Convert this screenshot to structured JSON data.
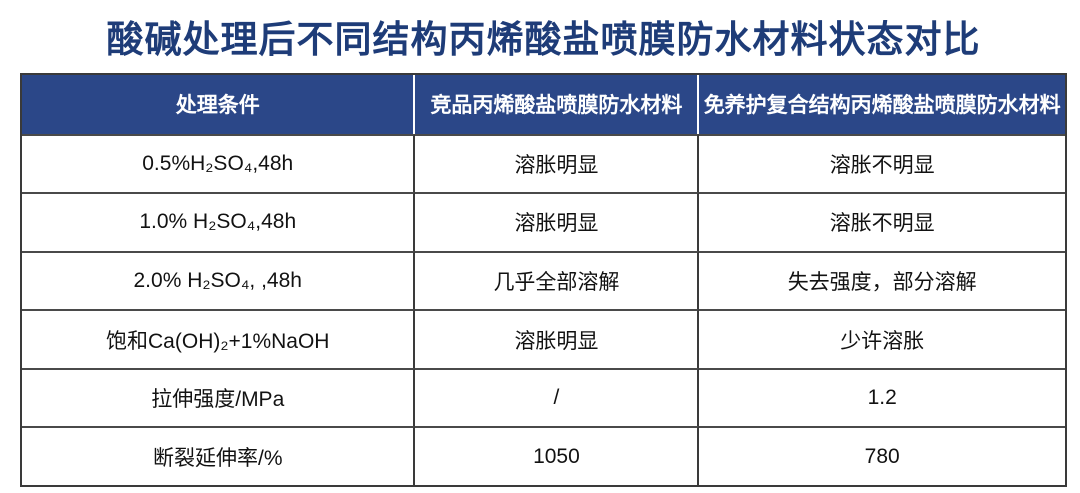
{
  "title": "酸碱处理后不同结构丙烯酸盐喷膜防水材料状态对比",
  "colors": {
    "title_color": "#1E3C78",
    "header_bg": "#2B4788",
    "header_text": "#FFFFFF",
    "body_text": "#121212",
    "grid_line": "#3A3A3A"
  },
  "table": {
    "headers": [
      "处理条件",
      "竞品丙烯酸盐喷膜防水材料",
      "免养护复合结构丙烯酸盐喷膜防水材料"
    ],
    "rows": [
      {
        "cells": [
          "0.5%H₂SO₄,48h",
          "溶胀明显",
          "溶胀不明显"
        ]
      },
      {
        "cells": [
          "1.0% H₂SO₄,48h",
          "溶胀明显",
          "溶胀不明显"
        ]
      },
      {
        "cells": [
          "2.0% H₂SO₄, ,48h",
          "几乎全部溶解",
          "失去强度，部分溶解"
        ]
      },
      {
        "cells": [
          "饱和Ca(OH)₂+1%NaOH",
          "溶胀明显",
          "少许溶胀"
        ]
      },
      {
        "cells": [
          "拉伸强度/MPa",
          "/",
          "1.2"
        ]
      },
      {
        "cells": [
          "断裂延伸率/%",
          "1050",
          "780"
        ]
      }
    ]
  },
  "chart_data": {
    "type": "table",
    "title": "酸碱处理后不同结构丙烯酸盐喷膜防水材料状态对比",
    "columns": [
      "处理条件",
      "竞品丙烯酸盐喷膜防水材料",
      "免养护复合结构丙烯酸盐喷膜防水材料"
    ],
    "rows": [
      [
        "0.5%H₂SO₄,48h",
        "溶胀明显",
        "溶胀不明显"
      ],
      [
        "1.0% H₂SO₄,48h",
        "溶胀明显",
        "溶胀不明显"
      ],
      [
        "2.0% H₂SO₄, ,48h",
        "几乎全部溶解",
        "失去强度，部分溶解"
      ],
      [
        "饱和Ca(OH)₂+1%NaOH",
        "溶胀明显",
        "少许溶胀"
      ],
      [
        "拉伸强度/MPa",
        "/",
        "1.2"
      ],
      [
        "断裂延伸率/%",
        "1050",
        "780"
      ]
    ]
  }
}
